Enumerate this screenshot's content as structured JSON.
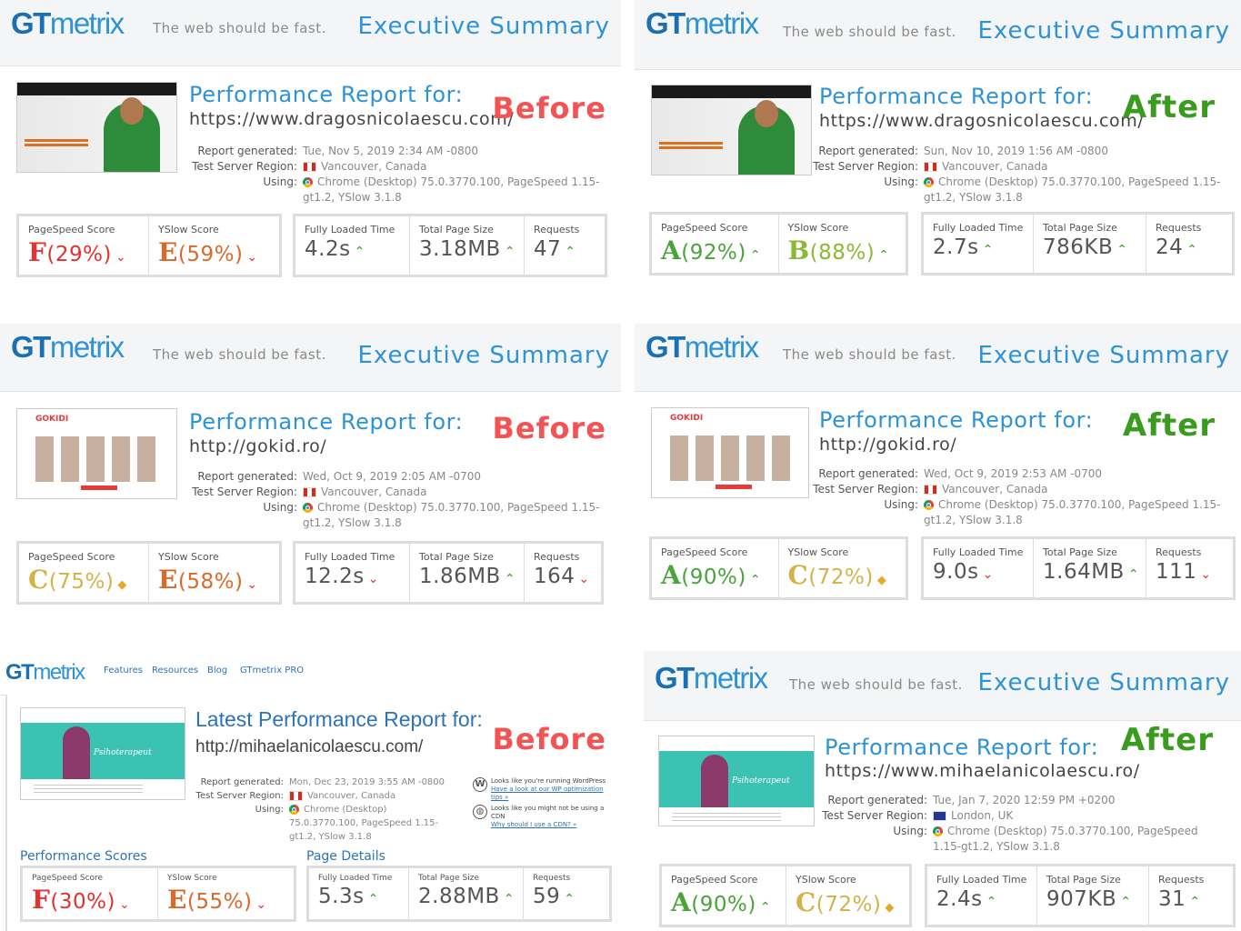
{
  "brand": {
    "gt": "GT",
    "mx": "metrix",
    "tagline": "The web should be fast.",
    "exec": "Executive Summary"
  },
  "labels": {
    "perf_title": "Performance Report for:",
    "latest_title": "Latest Performance Report for:",
    "report_generated": "Report generated:",
    "test_server": "Test Server Region:",
    "using": "Using:",
    "pagespeed": "PageSpeed Score",
    "yslow": "YSlow Score",
    "loaded": "Fully Loaded Time",
    "size": "Total Page Size",
    "requests": "Requests",
    "before": "Before",
    "after": "After"
  },
  "reports": [
    {
      "url": "https://www.dragosnicolaescu.com/",
      "generated": "Tue, Nov 5, 2019 2:34 AM -0800",
      "region": "Vancouver, Canada",
      "using": "Chrome (Desktop) 75.0.3770.100, PageSpeed 1.15-gt1.2, YSlow 3.1.8",
      "ps_grade": "F",
      "ps": "(29%)",
      "ys_grade": "E",
      "ys": "(59%)",
      "loaded": "4.2s",
      "size": "3.18MB",
      "req": "47"
    },
    {
      "url": "https://www.dragosnicolaescu.com/",
      "generated": "Sun, Nov 10, 2019 1:56 AM -0800",
      "region": "Vancouver, Canada",
      "using": "Chrome (Desktop) 75.0.3770.100, PageSpeed 1.15-gt1.2, YSlow 3.1.8",
      "ps_grade": "A",
      "ps": "(92%)",
      "ys_grade": "B",
      "ys": "(88%)",
      "loaded": "2.7s",
      "size": "786KB",
      "req": "24"
    },
    {
      "url": "http://gokid.ro/",
      "generated": "Wed, Oct 9, 2019 2:05 AM -0700",
      "region": "Vancouver, Canada",
      "using": "Chrome (Desktop) 75.0.3770.100, PageSpeed 1.15-gt1.2, YSlow 3.1.8",
      "ps_grade": "C",
      "ps": "(75%)",
      "ys_grade": "E",
      "ys": "(58%)",
      "loaded": "12.2s",
      "size": "1.86MB",
      "req": "164"
    },
    {
      "url": "http://gokid.ro/",
      "generated": "Wed, Oct 9, 2019 2:53 AM -0700",
      "region": "Vancouver, Canada",
      "using": "Chrome (Desktop) 75.0.3770.100, PageSpeed 1.15-gt1.2, YSlow 3.1.8",
      "ps_grade": "A",
      "ps": "(90%)",
      "ys_grade": "C",
      "ys": "(72%)",
      "loaded": "9.0s",
      "size": "1.64MB",
      "req": "111"
    },
    {
      "url": "http://mihaelanicolaescu.com/",
      "generated": "Mon, Dec 23, 2019 3:55 AM -0800",
      "region": "Vancouver, Canada",
      "using": "Chrome (Desktop) 75.0.3770.100, PageSpeed 1.15-gt1.2, YSlow 3.1.8",
      "ps_grade": "F",
      "ps": "(30%)",
      "ys_grade": "E",
      "ys": "(55%)",
      "loaded": "5.3s",
      "size": "2.88MB",
      "req": "59"
    },
    {
      "url": "https://www.mihaelanicolaescu.ro/",
      "generated": "Tue, Jan 7, 2020 12:59 PM +0200",
      "region": "London, UK",
      "using": "Chrome (Desktop) 75.0.3770.100, PageSpeed 1.15-gt1.2, YSlow 3.1.8",
      "ps_grade": "A",
      "ps": "(90%)",
      "ys_grade": "C",
      "ys": "(72%)",
      "loaded": "2.4s",
      "size": "907KB",
      "req": "31"
    }
  ],
  "old": {
    "nav": [
      "Features",
      "Resources",
      "Blog",
      "GTmetrix PRO"
    ],
    "perf_scores": "Performance Scores",
    "page_details": "Page Details",
    "wp_note": "Looks like you're running WordPress",
    "wp_link": "Have a look at our WP optimization tips »",
    "cdn_note": "Looks like you might not be using a CDN",
    "cdn_link": "Why should I use a CDN? »"
  },
  "thumbs": {
    "gokidi": "GOKIDI",
    "psiho": "Psihoterapeut"
  }
}
